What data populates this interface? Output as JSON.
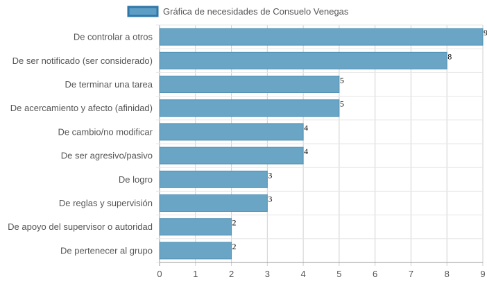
{
  "chart_data": {
    "type": "bar",
    "orientation": "horizontal",
    "categories": [
      "De controlar a otros",
      "De ser notificado (ser considerado)",
      "De terminar una tarea",
      "De acercamiento y afecto (afinidad)",
      "De cambio/no modificar",
      "De ser agresivo/pasivo",
      "De logro",
      "De reglas y supervisión",
      "De apoyo del supervisor o autoridad",
      "De pertenecer al grupo"
    ],
    "series": [
      {
        "name": "Gráfica de necesidades de Consuelo Venegas",
        "values": [
          9,
          8,
          5,
          5,
          4,
          4,
          3,
          3,
          2,
          2
        ]
      }
    ],
    "xlim": [
      0,
      9
    ],
    "x_ticks": [
      "0",
      "1",
      "2",
      "3",
      "4",
      "5",
      "6",
      "7",
      "8",
      "9"
    ],
    "grid": true,
    "legend": "top-center",
    "colors": {
      "bar_fill": "#6aa5c5",
      "bar_border": "#4f8fb3",
      "legend_fill": "#5d9ec4",
      "legend_border": "#2f77a8",
      "grid": "#d0d0d0",
      "axis": "#999999"
    }
  }
}
